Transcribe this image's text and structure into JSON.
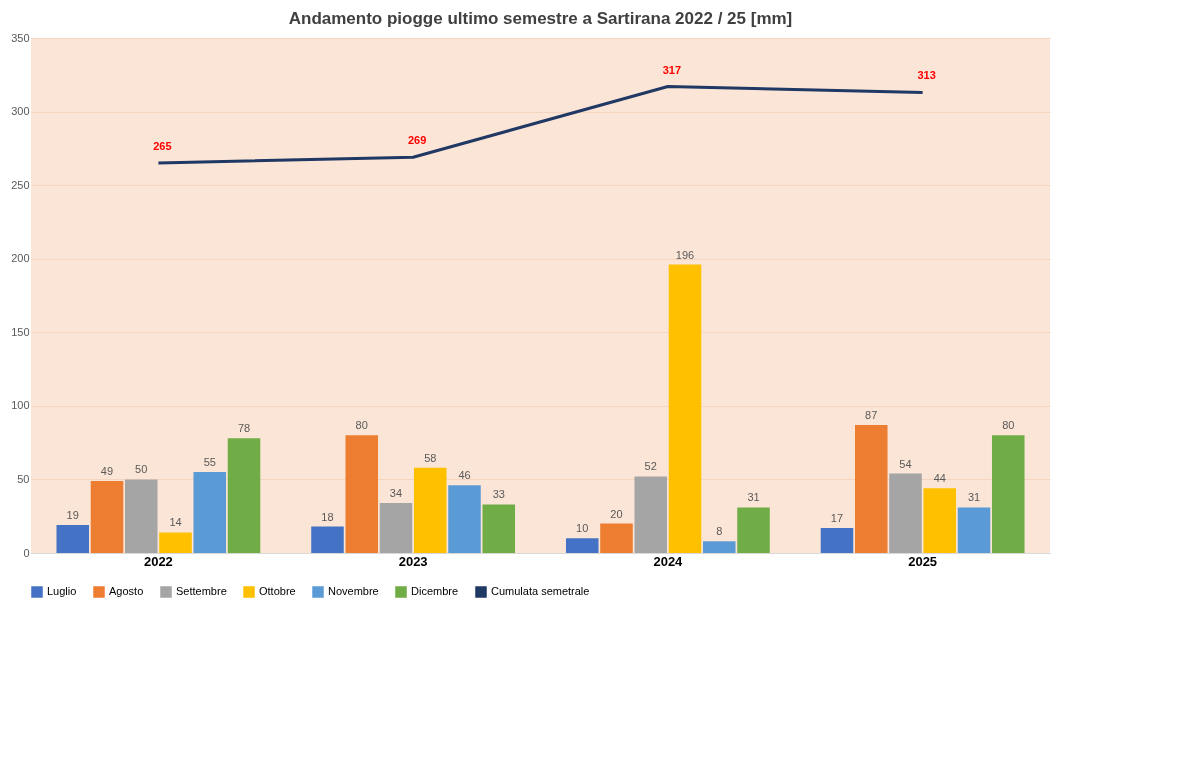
{
  "chart_data": {
    "type": "bar",
    "title": "Andamento piogge ultimo semestre a Sartirana 2022 / 25 [mm]",
    "categories": [
      "2022",
      "2023",
      "2024",
      "2025"
    ],
    "series": [
      {
        "name": "Luglio",
        "color": "#4472c4",
        "values": [
          19,
          18,
          10,
          17
        ]
      },
      {
        "name": "Agosto",
        "color": "#ed7d31",
        "values": [
          49,
          80,
          20,
          87
        ]
      },
      {
        "name": "Settembre",
        "color": "#a5a5a5",
        "values": [
          50,
          34,
          52,
          54
        ]
      },
      {
        "name": "Ottobre",
        "color": "#ffc000",
        "values": [
          14,
          58,
          196,
          44
        ]
      },
      {
        "name": "Novembre",
        "color": "#5b9bd5",
        "values": [
          55,
          46,
          8,
          31
        ]
      },
      {
        "name": "Dicembre",
        "color": "#70ad47",
        "values": [
          78,
          33,
          31,
          80
        ]
      },
      {
        "name": "Cumulata semetrale",
        "color": "#203864",
        "type": "line",
        "values": [
          265,
          269,
          317,
          313
        ]
      }
    ],
    "ylim": [
      0,
      350
    ],
    "yticks": [
      0,
      50,
      100,
      150,
      200,
      250,
      300,
      350
    ],
    "grid": "y",
    "legend": "bottom",
    "data_labels": true
  }
}
